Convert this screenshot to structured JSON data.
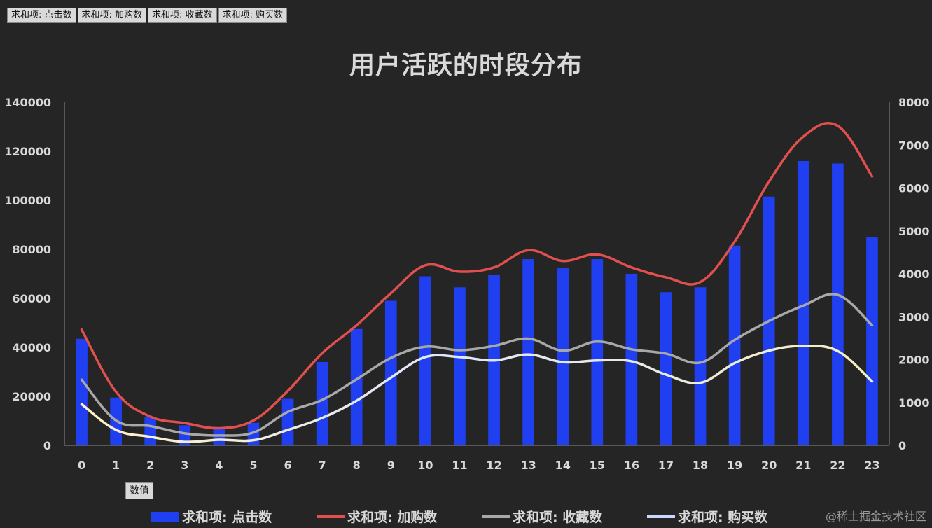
{
  "field_buttons": [
    "求和项: 点击数",
    "求和项: 加购数",
    "求和项: 收藏数",
    "求和项: 购买数"
  ],
  "value_button": "数值",
  "watermark": "@稀土掘金技术社区",
  "colors": {
    "background": "#252525",
    "clicks": "#1f3ff0",
    "cart": "#e0504e",
    "fav": "#a8a8a8",
    "buy": "#fff2c4",
    "axis": "#d9d9d9"
  },
  "chart_data": {
    "type": "bar+line",
    "title": "用户活跃的时段分布",
    "categories": [
      "0",
      "1",
      "2",
      "3",
      "4",
      "5",
      "6",
      "7",
      "8",
      "9",
      "10",
      "11",
      "12",
      "13",
      "14",
      "15",
      "16",
      "17",
      "18",
      "19",
      "20",
      "21",
      "22",
      "23"
    ],
    "y_left": {
      "min": 0,
      "max": 140000,
      "ticks": [
        "0",
        "20000",
        "40000",
        "60000",
        "80000",
        "100000",
        "120000",
        "140000"
      ]
    },
    "y_right": {
      "min": 0,
      "max": 8000,
      "ticks": [
        "0",
        "1000",
        "2000",
        "3000",
        "4000",
        "5000",
        "6000",
        "7000",
        "8000"
      ]
    },
    "series": [
      {
        "name": "求和项: 点击数",
        "type": "bar",
        "axis": "left",
        "values": [
          43500,
          19500,
          11500,
          8200,
          7000,
          9200,
          19000,
          34000,
          47500,
          59000,
          69000,
          64500,
          69500,
          76000,
          72500,
          76000,
          70000,
          62500,
          64500,
          81500,
          101500,
          116000,
          115000,
          85000
        ]
      },
      {
        "name": "求和项: 加购数",
        "type": "line",
        "axis": "right",
        "values": [
          2700,
          1250,
          670,
          520,
          400,
          580,
          1270,
          2150,
          2800,
          3550,
          4200,
          4050,
          4150,
          4550,
          4300,
          4450,
          4150,
          3920,
          3810,
          4750,
          6150,
          7200,
          7450,
          6270
        ]
      },
      {
        "name": "求和项: 收藏数",
        "type": "line",
        "axis": "right",
        "values": [
          1530,
          580,
          450,
          280,
          230,
          300,
          780,
          1060,
          1540,
          2040,
          2300,
          2220,
          2320,
          2490,
          2210,
          2420,
          2240,
          2140,
          1930,
          2460,
          2900,
          3260,
          3510,
          2800
        ]
      },
      {
        "name": "求和项: 购买数",
        "type": "line",
        "axis": "right",
        "values": [
          960,
          360,
          200,
          80,
          130,
          120,
          360,
          640,
          1040,
          1580,
          2060,
          2060,
          1980,
          2120,
          1940,
          1980,
          1960,
          1650,
          1460,
          1920,
          2210,
          2320,
          2200,
          1490
        ]
      }
    ],
    "legend_position": "bottom",
    "grid": false
  }
}
